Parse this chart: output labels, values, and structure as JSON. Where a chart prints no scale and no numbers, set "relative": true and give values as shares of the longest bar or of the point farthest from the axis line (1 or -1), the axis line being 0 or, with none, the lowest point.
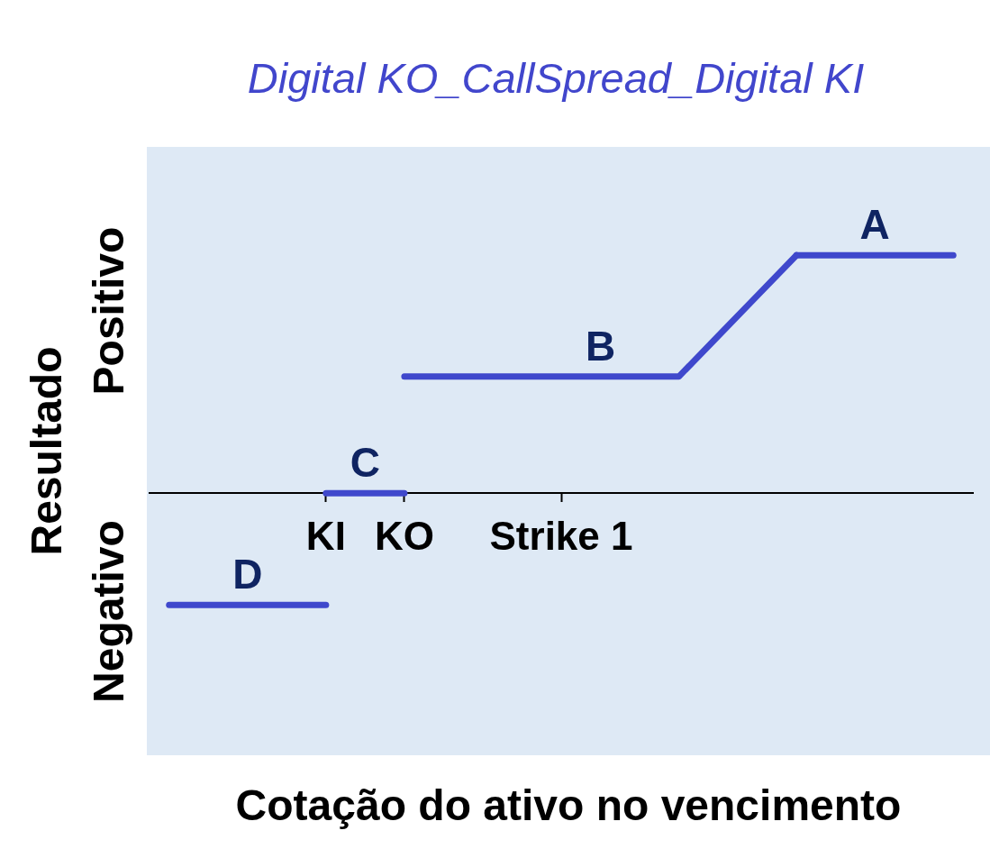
{
  "chart_data": {
    "type": "line",
    "title": "Digital KO_CallSpread_Digital KI",
    "xlabel": "Cotação do ativo no vencimento",
    "ylabel": "Resultado",
    "relative": true,
    "categories": [
      null,
      null,
      null,
      null,
      "KI",
      null,
      "KO",
      null,
      null,
      null,
      "Strike 1",
      null,
      null,
      null,
      null,
      null,
      null,
      null,
      null,
      null,
      null
    ],
    "series": [
      {
        "name": "D",
        "color": "#3f48cc",
        "values": [
          -0.47,
          -0.47,
          -0.47,
          -0.47,
          -0.47,
          null,
          null,
          null,
          null,
          null,
          null,
          null,
          null,
          null,
          null,
          null,
          null,
          null,
          null,
          null,
          null
        ]
      },
      {
        "name": "C",
        "color": "#3f48cc",
        "values": [
          null,
          null,
          null,
          null,
          0,
          0,
          0,
          null,
          null,
          null,
          null,
          null,
          null,
          null,
          null,
          null,
          null,
          null,
          null,
          null,
          null
        ]
      },
      {
        "name": "B",
        "color": "#3f48cc",
        "values": [
          null,
          null,
          null,
          null,
          null,
          null,
          0.49,
          0.49,
          0.49,
          0.49,
          0.49,
          0.49,
          0.49,
          0.49,
          0.66,
          0.83,
          1,
          null,
          null,
          null,
          null
        ]
      },
      {
        "name": "A",
        "color": "#3f48cc",
        "values": [
          null,
          null,
          null,
          null,
          null,
          null,
          null,
          null,
          null,
          null,
          null,
          null,
          null,
          null,
          null,
          null,
          1,
          1,
          1,
          1,
          1
        ]
      }
    ],
    "annotations": [
      "Positivo",
      "Negativo"
    ]
  }
}
